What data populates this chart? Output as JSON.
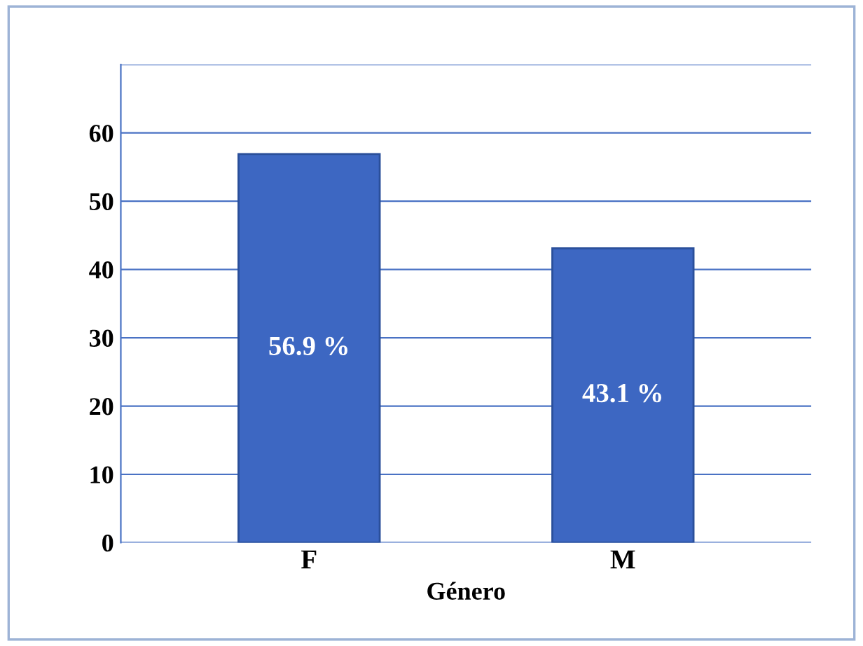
{
  "chart_data": {
    "type": "bar",
    "xlabel": "Género",
    "categories": [
      "F",
      "M"
    ],
    "values": [
      56.9,
      43.1
    ],
    "value_labels": [
      "56.9 %",
      "43.1 %"
    ],
    "color": "#3d67c2",
    "ylim": [
      0,
      70
    ],
    "yticks": [
      0,
      10,
      20,
      30,
      40,
      50,
      60,
      {
        "value": 70,
        "label": null
      }
    ],
    "grid": "y"
  }
}
